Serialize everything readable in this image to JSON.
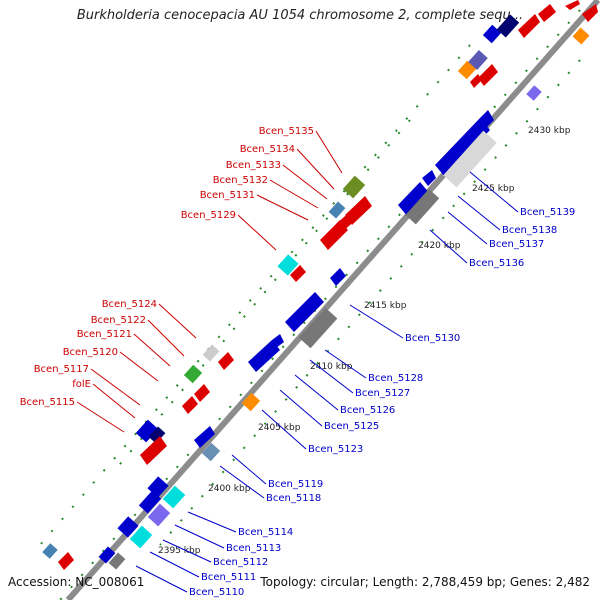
{
  "title": "Burkholderia cenocepacia AU 1054 chromosome 2, complete sequ...",
  "accession": "Accession: NC_008061",
  "summary": "Topology: circular; Length: 2,788,459 bp; Genes: 2,482",
  "colors": {
    "forward_label": "#cc0000",
    "reverse_label": "#0000cc",
    "backbone": "#8c8c8c"
  },
  "ticks": [
    "2430 kbp",
    "2425 kbp",
    "2420 kbp",
    "2415 kbp",
    "2410 kbp",
    "2405 kbp",
    "2400 kbp",
    "2395 kbp"
  ],
  "forward_labels": [
    "Bcen_5135",
    "Bcen_5134",
    "Bcen_5133",
    "Bcen_5132",
    "Bcen_5131",
    "Bcen_5129",
    "Bcen_5124",
    "Bcen_5122",
    "Bcen_5121",
    "Bcen_5120",
    "Bcen_5117",
    "folE",
    "Bcen_5115"
  ],
  "reverse_labels": [
    "Bcen_5139",
    "Bcen_5138",
    "Bcen_5137",
    "Bcen_5136",
    "Bcen_5130",
    "Bcen_5128",
    "Bcen_5127",
    "Bcen_5126",
    "Bcen_5125",
    "Bcen_5123",
    "Bcen_5119",
    "Bcen_5118",
    "Bcen_5114",
    "Bcen_5113",
    "Bcen_5112",
    "Bcen_5111",
    "Bcen_5110"
  ]
}
